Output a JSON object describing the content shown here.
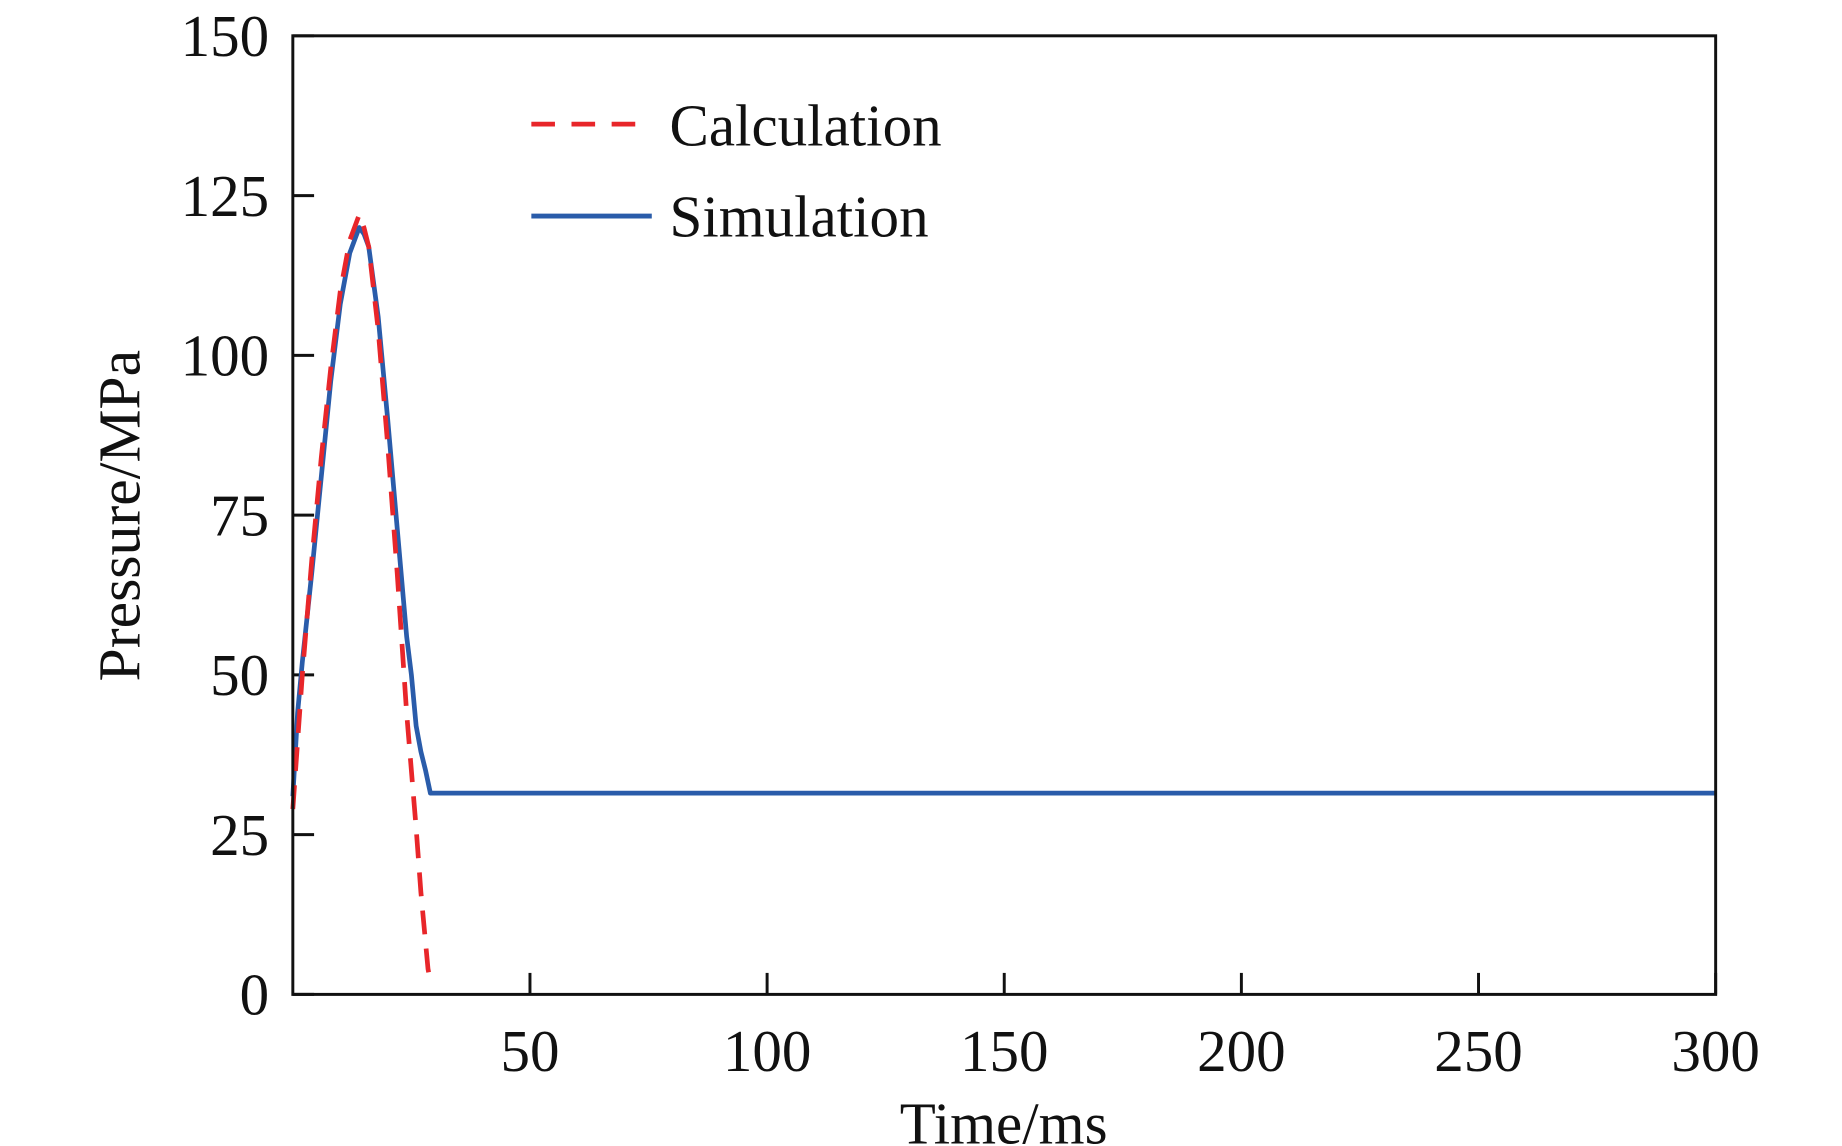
{
  "chart_data": {
    "type": "line",
    "title": "",
    "xlabel": "Time/ms",
    "ylabel": "Pressure/MPa",
    "xlim": [
      0,
      300
    ],
    "ylim": [
      0,
      150
    ],
    "xticks": [
      50,
      100,
      150,
      200,
      250,
      300
    ],
    "yticks": [
      0,
      25,
      50,
      75,
      100,
      125,
      150
    ],
    "grid": false,
    "legend_position": "top-left",
    "series": [
      {
        "name": "Calculation",
        "style": "dashed",
        "color": "#e8262a",
        "x": [
          0,
          2,
          4,
          6,
          8,
          10,
          12,
          13,
          14,
          15,
          16,
          18,
          20,
          22,
          24,
          26,
          27,
          28,
          28.5,
          29
        ],
        "y": [
          29,
          50,
          68,
          84,
          98,
          110,
          118,
          120,
          122,
          120,
          117,
          104,
          86,
          66,
          44,
          26,
          16,
          8,
          4,
          2
        ]
      },
      {
        "name": "Simulation",
        "style": "solid",
        "color": "#2a5caa",
        "x": [
          0,
          1,
          2,
          4,
          6,
          8,
          10,
          12,
          13,
          14,
          15,
          16,
          18,
          20,
          22,
          24,
          25,
          26,
          27,
          28,
          29,
          300
        ],
        "y": [
          31,
          44,
          52,
          66,
          81,
          96,
          108,
          116,
          118,
          120,
          119,
          117,
          106,
          90,
          73,
          56,
          50,
          42,
          38,
          35,
          31.5,
          31.5
        ]
      }
    ]
  }
}
